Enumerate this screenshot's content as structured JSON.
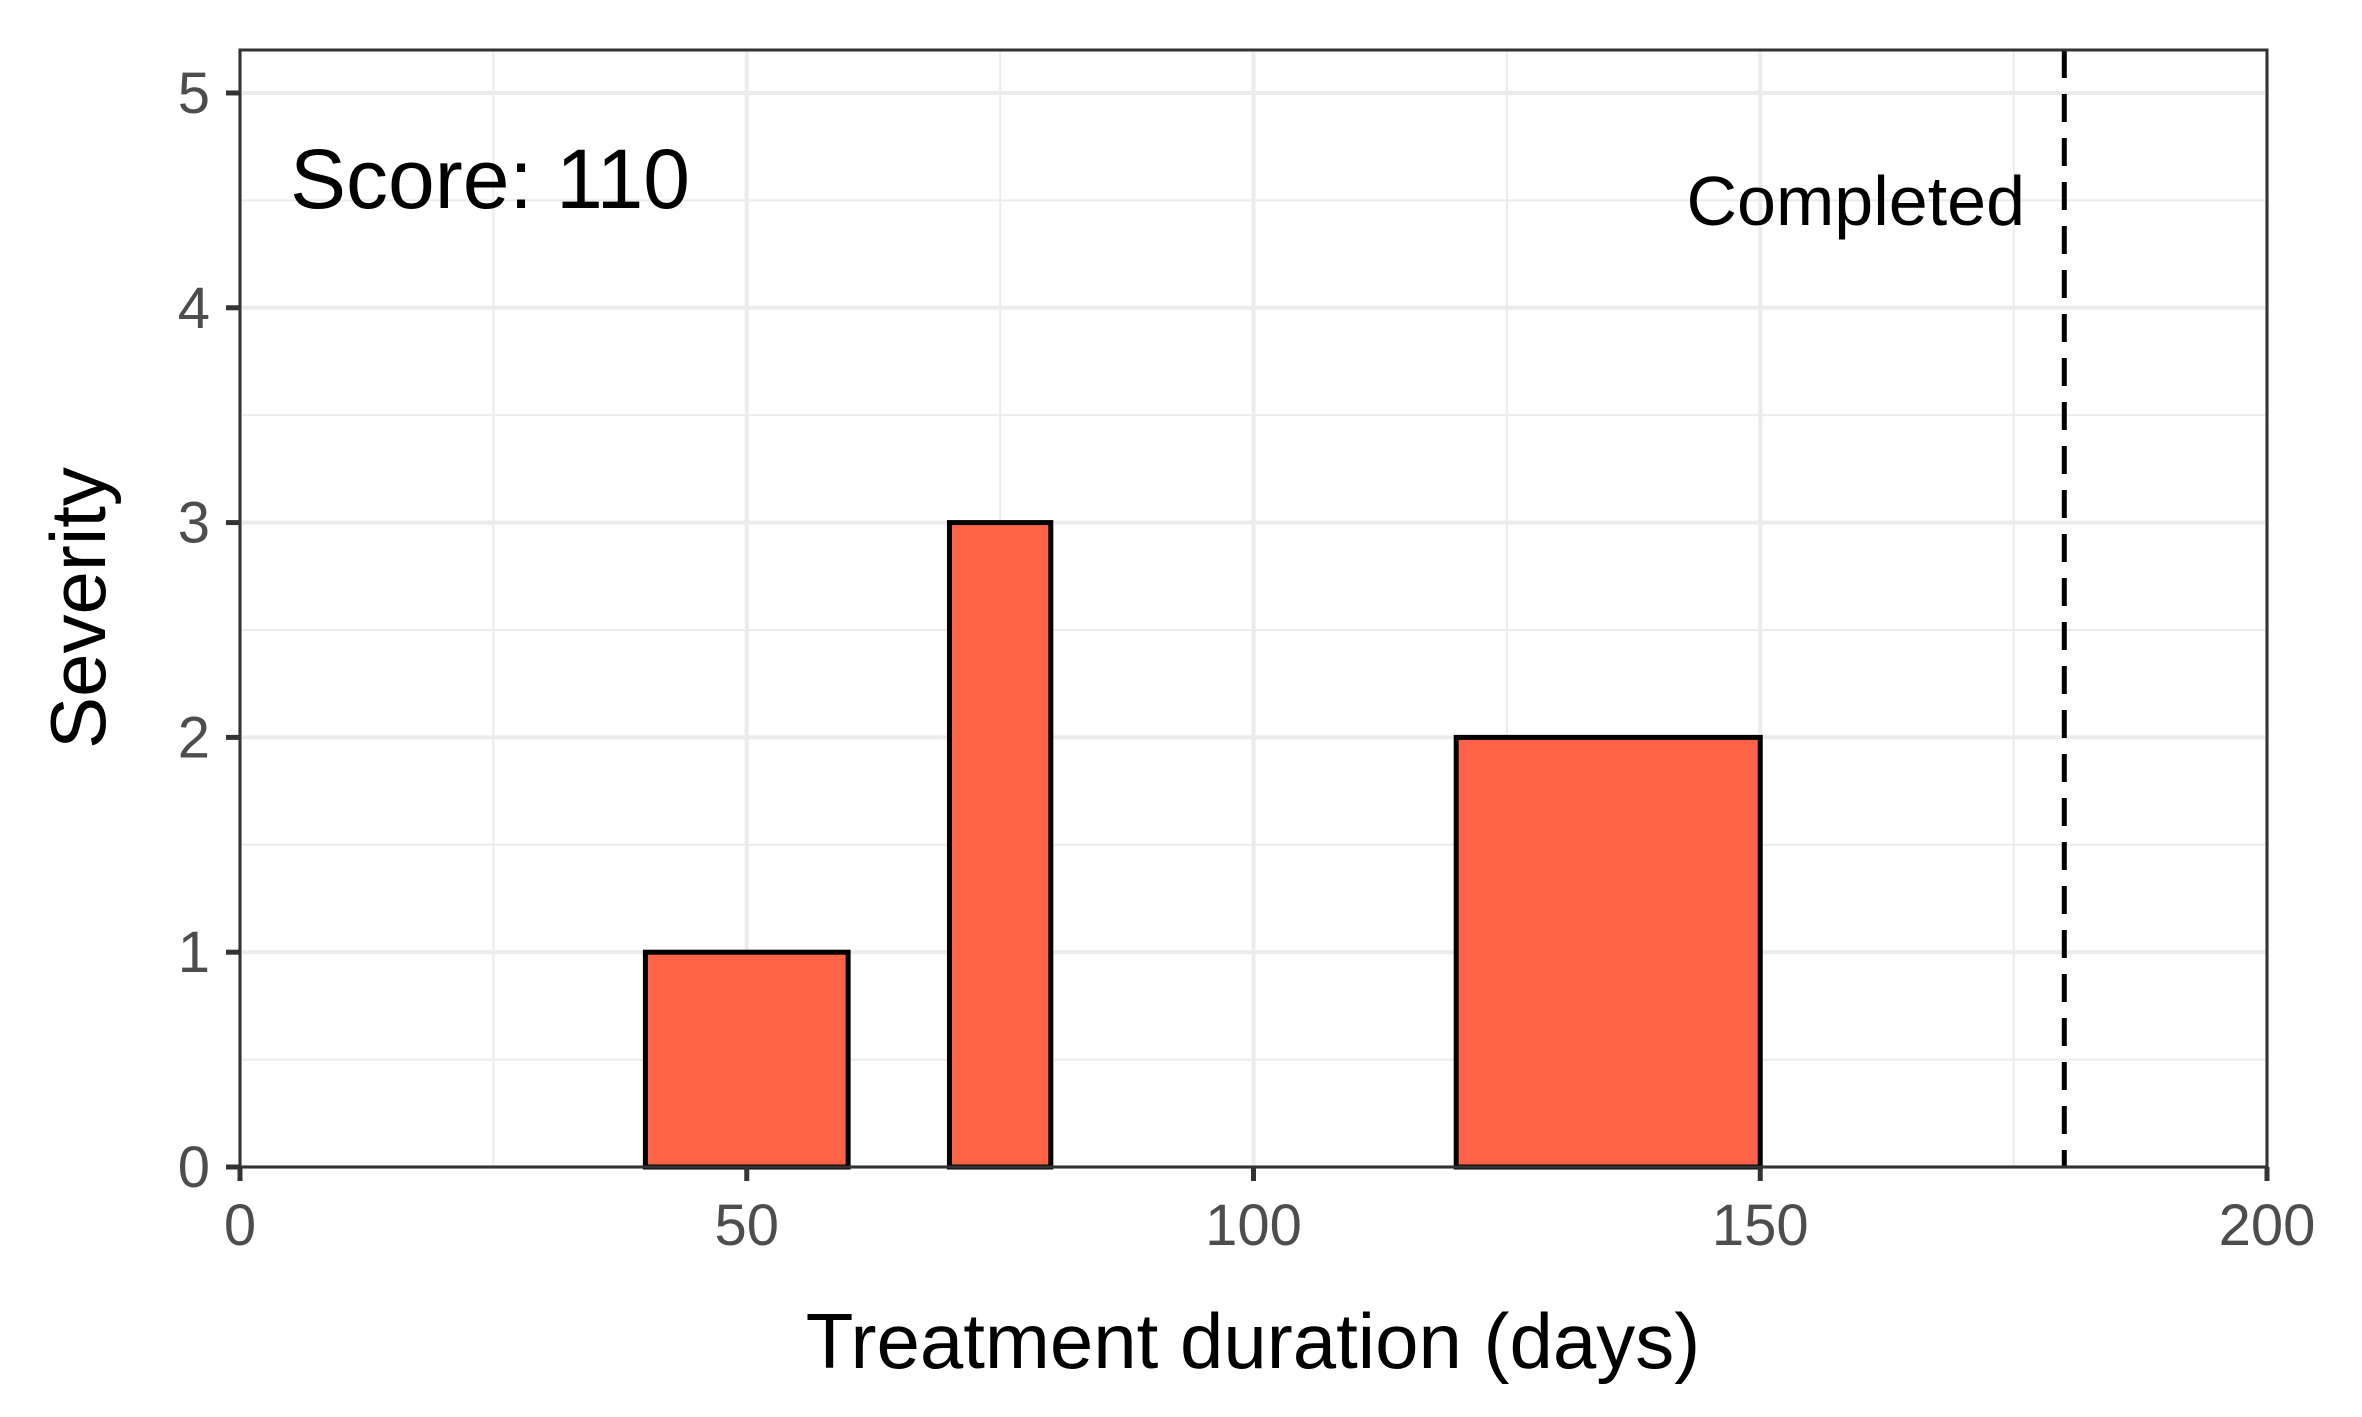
{
  "chart_data": {
    "type": "bar",
    "title": "",
    "xlabel": "Treatment duration (days)",
    "ylabel": "Severity",
    "xlim": [
      0,
      200
    ],
    "ylim": [
      0,
      5.2
    ],
    "x_ticks": [
      "0",
      "50",
      "100",
      "150",
      "200"
    ],
    "y_ticks": [
      "0",
      "1",
      "2",
      "3",
      "4",
      "5"
    ],
    "grid": true,
    "bars": [
      {
        "x_start": 40,
        "x_end": 60,
        "value": 1
      },
      {
        "x_start": 70,
        "x_end": 80,
        "value": 3
      },
      {
        "x_start": 120,
        "x_end": 150,
        "value": 2
      }
    ],
    "bar_color": "#ff6347",
    "bar_edge_color": "#000000",
    "reference_line": {
      "x": 180,
      "style": "dashed",
      "label": "Completed"
    },
    "annotation": {
      "text": "Score: 110"
    }
  }
}
